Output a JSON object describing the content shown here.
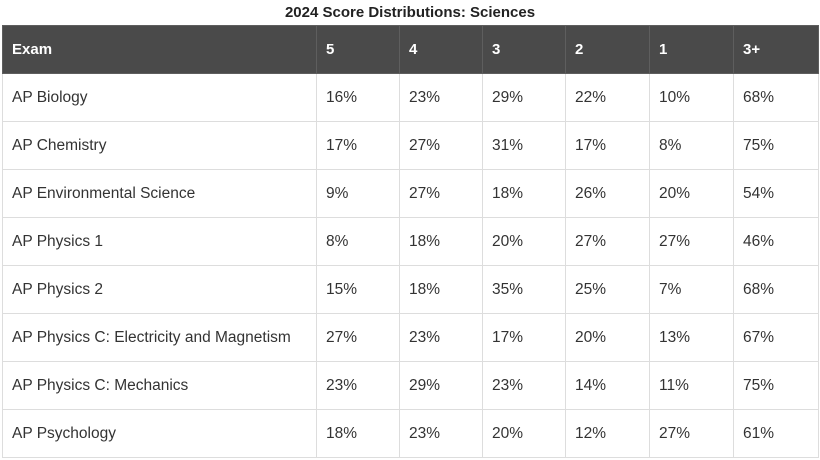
{
  "title": "2024 Score Distributions: Sciences",
  "columns": [
    "Exam",
    "5",
    "4",
    "3",
    "2",
    "1",
    "3+"
  ],
  "rows": [
    {
      "exam": "AP Biology",
      "values": [
        "16%",
        "23%",
        "29%",
        "22%",
        "10%",
        "68%"
      ]
    },
    {
      "exam": "AP Chemistry",
      "values": [
        "17%",
        "27%",
        "31%",
        "17%",
        "8%",
        "75%"
      ]
    },
    {
      "exam": "AP Environmental Science",
      "values": [
        "9%",
        "27%",
        "18%",
        "26%",
        "20%",
        "54%"
      ]
    },
    {
      "exam": "AP Physics 1",
      "values": [
        "8%",
        "18%",
        "20%",
        "27%",
        "27%",
        "46%"
      ]
    },
    {
      "exam": "AP Physics 2",
      "values": [
        "15%",
        "18%",
        "35%",
        "25%",
        "7%",
        "68%"
      ]
    },
    {
      "exam": "AP Physics C: Electricity and Magnetism",
      "values": [
        "27%",
        "23%",
        "17%",
        "20%",
        "13%",
        "67%"
      ]
    },
    {
      "exam": "AP Physics C: Mechanics",
      "values": [
        "23%",
        "29%",
        "23%",
        "14%",
        "11%",
        "75%"
      ]
    },
    {
      "exam": "AP Psychology",
      "values": [
        "18%",
        "23%",
        "20%",
        "12%",
        "27%",
        "61%"
      ]
    }
  ],
  "colors": {
    "header_background": "#4a4a4a",
    "header_text": "#ffffff",
    "border": "#dddddd",
    "body_text": "#333333"
  },
  "chart_data": {
    "type": "table",
    "title": "2024 Score Distributions: Sciences",
    "columns": [
      "Exam",
      "5",
      "4",
      "3",
      "2",
      "1",
      "3+"
    ],
    "rows": [
      [
        "AP Biology",
        16,
        23,
        29,
        22,
        10,
        68
      ],
      [
        "AP Chemistry",
        17,
        27,
        31,
        17,
        8,
        75
      ],
      [
        "AP Environmental Science",
        9,
        27,
        18,
        26,
        20,
        54
      ],
      [
        "AP Physics 1",
        8,
        18,
        20,
        27,
        27,
        46
      ],
      [
        "AP Physics 2",
        15,
        18,
        35,
        25,
        7,
        68
      ],
      [
        "AP Physics C: Electricity and Magnetism",
        27,
        23,
        17,
        20,
        13,
        67
      ],
      [
        "AP Physics C: Mechanics",
        23,
        29,
        23,
        14,
        11,
        75
      ],
      [
        "AP Psychology",
        18,
        23,
        20,
        12,
        27,
        61
      ]
    ],
    "unit": "%"
  }
}
